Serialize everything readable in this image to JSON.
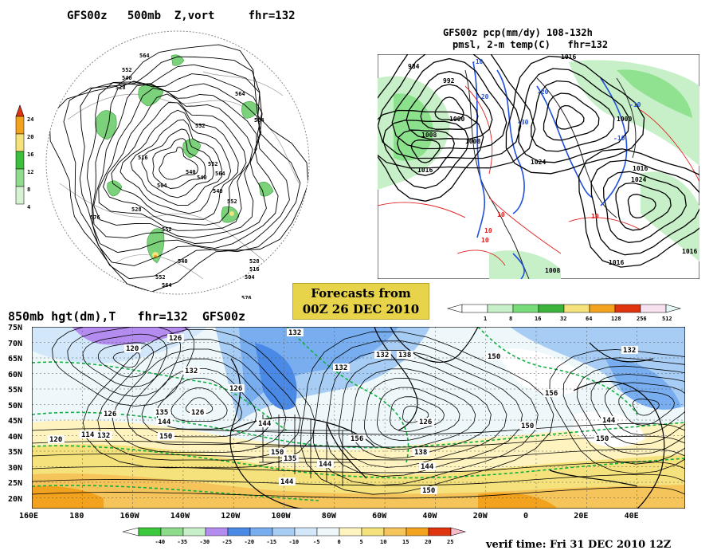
{
  "panel_vort": {
    "title": "GFS00z   500mb  Z,vort     fhr=132",
    "colorbar_labels": [
      "24",
      "20",
      "16",
      "12",
      "8",
      "4"
    ],
    "colorbar_colors": [
      "#e0340f",
      "#f2a21c",
      "#f5e27c",
      "#3cbf3c",
      "#8fdc8f",
      "#d7f2d2"
    ],
    "contour_labels": [
      "564",
      "552",
      "540",
      "528",
      "516",
      "504",
      "576",
      "552",
      "540",
      "528",
      "516",
      "504",
      "540",
      "552",
      "564",
      "564",
      "552",
      "540",
      "528",
      "564",
      "552",
      "576",
      "584",
      "552",
      "540"
    ]
  },
  "panel_pmsl": {
    "title_line1": "GFS00z pcp(mm/dy) 108-132h",
    "title_line2": "pmsl, 2-m temp(C)   fhr=132",
    "colorbar_labels": [
      "1",
      "8",
      "16",
      "32",
      "64",
      "128",
      "256",
      "512"
    ],
    "colorbar_colors": [
      "#ffffff",
      "#c8f0c8",
      "#78dc78",
      "#3cb43c",
      "#f5e27c",
      "#f2a21c",
      "#e0340f",
      "#f7e0f0",
      "#e3f7f7"
    ],
    "contour_labels": [
      "984",
      "992",
      "1000",
      "1008",
      "1016",
      "1024",
      "1008",
      "1016",
      "1000",
      "1016",
      "1024",
      "1008",
      "1016",
      "1016"
    ],
    "temp_labels": [
      "-10",
      "-20",
      "-30",
      "-20",
      "-10",
      "-10",
      "10",
      "10",
      "10",
      "10"
    ]
  },
  "forecast_box": {
    "line1": "Forecasts from",
    "line2": "00Z 26 DEC 2010"
  },
  "panel_850": {
    "title": "850mb hgt(dm),T   fhr=132  GFS00z",
    "lat_labels": [
      "75N",
      "70N",
      "65N",
      "60N",
      "55N",
      "50N",
      "45N",
      "40N",
      "35N",
      "30N",
      "25N",
      "20N"
    ],
    "lon_labels": [
      "160E",
      "180",
      "160W",
      "140W",
      "120W",
      "100W",
      "80W",
      "60W",
      "40W",
      "20W",
      "0",
      "20E",
      "40E"
    ],
    "contour_labels": [
      "120",
      "126",
      "132",
      "132",
      "126",
      "114",
      "132",
      "138",
      "126",
      "135",
      "144",
      "120",
      "132",
      "150",
      "144",
      "156",
      "126",
      "138",
      "144",
      "150",
      "144",
      "150",
      "132",
      "150",
      "144",
      "150",
      "156",
      "150",
      "135",
      "144",
      "132",
      "126"
    ],
    "colorbar_labels": [
      "-40",
      "-35",
      "-30",
      "-25",
      "-20",
      "-15",
      "-10",
      "-5",
      "0",
      "5",
      "10",
      "15",
      "20",
      "25"
    ],
    "colorbar_colors": [
      "#3cc83c",
      "#8cdc8c",
      "#c8f0c8",
      "#b48cf0",
      "#4a8ae6",
      "#78aef0",
      "#a8cdf5",
      "#d2e8fa",
      "#eef8fb",
      "#fff4c0",
      "#f5e27c",
      "#f5c45a",
      "#f2a21c",
      "#e0340f",
      "#f7bcc8"
    ]
  },
  "verif_time": "verif time: Fri 31 DEC 2010 12Z"
}
